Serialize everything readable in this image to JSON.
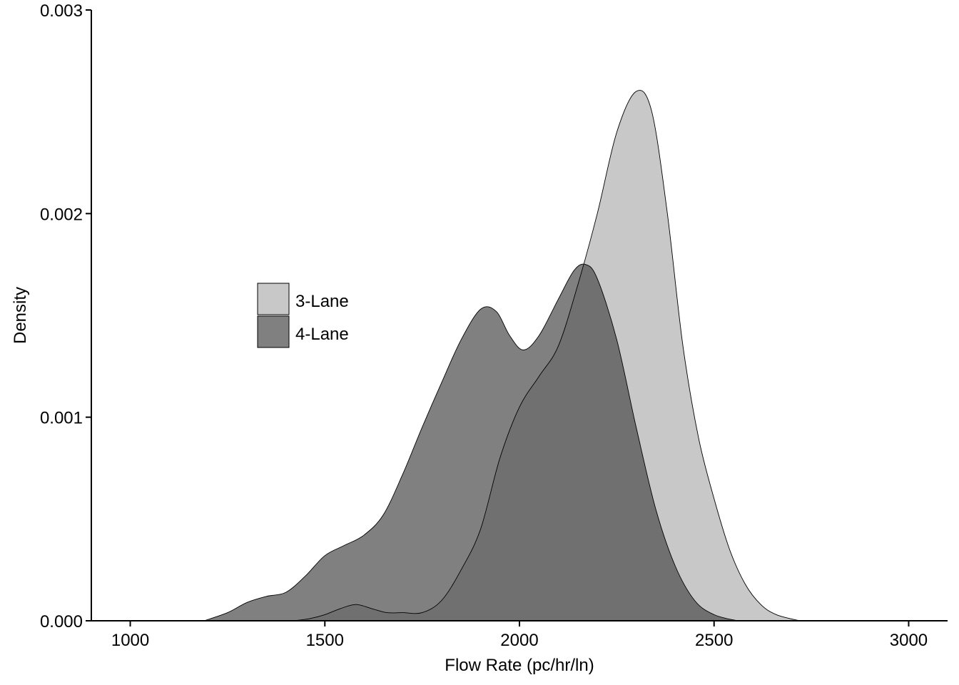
{
  "chart_data": {
    "type": "area",
    "title": "",
    "xlabel": "Flow Rate (pc/hr/ln)",
    "ylabel": "Density",
    "xlim": [
      900,
      3100
    ],
    "ylim": [
      0,
      0.003
    ],
    "x_ticks": [
      1000,
      1500,
      2000,
      2500,
      3000
    ],
    "x_tick_labels": [
      "1000",
      "1500",
      "2000",
      "2500",
      "3000"
    ],
    "y_ticks": [
      0,
      0.001,
      0.002,
      0.003
    ],
    "y_tick_labels": [
      "0.000",
      "0.001",
      "0.002",
      "0.003"
    ],
    "grid": false,
    "legend_position": "left-center",
    "series": [
      {
        "name": "3-Lane",
        "color": "#c8c8c8",
        "points": [
          [
            1420,
            0
          ],
          [
            1460,
            1e-05
          ],
          [
            1500,
            3e-05
          ],
          [
            1540,
            6e-05
          ],
          [
            1580,
            8e-05
          ],
          [
            1620,
            6e-05
          ],
          [
            1660,
            4e-05
          ],
          [
            1700,
            4e-05
          ],
          [
            1750,
            4e-05
          ],
          [
            1800,
            0.0001
          ],
          [
            1850,
            0.00025
          ],
          [
            1900,
            0.00045
          ],
          [
            1950,
            0.0008
          ],
          [
            2000,
            0.00105
          ],
          [
            2050,
            0.0012
          ],
          [
            2100,
            0.00135
          ],
          [
            2150,
            0.00165
          ],
          [
            2200,
            0.002
          ],
          [
            2250,
            0.0024
          ],
          [
            2300,
            0.0026
          ],
          [
            2340,
            0.0025
          ],
          [
            2380,
            0.002
          ],
          [
            2420,
            0.00135
          ],
          [
            2460,
            0.0009
          ],
          [
            2500,
            0.0006
          ],
          [
            2540,
            0.00035
          ],
          [
            2580,
            0.00018
          ],
          [
            2620,
            8e-05
          ],
          [
            2660,
            3e-05
          ],
          [
            2720,
            0
          ]
        ]
      },
      {
        "name": "4-Lane",
        "color": "#808080",
        "points": [
          [
            1190,
            0
          ],
          [
            1250,
            4e-05
          ],
          [
            1300,
            9e-05
          ],
          [
            1350,
            0.00012
          ],
          [
            1400,
            0.00014
          ],
          [
            1450,
            0.00022
          ],
          [
            1500,
            0.00032
          ],
          [
            1550,
            0.00037
          ],
          [
            1600,
            0.00042
          ],
          [
            1650,
            0.00052
          ],
          [
            1700,
            0.00072
          ],
          [
            1750,
            0.00095
          ],
          [
            1800,
            0.00117
          ],
          [
            1850,
            0.00138
          ],
          [
            1900,
            0.00153
          ],
          [
            1940,
            0.00152
          ],
          [
            1975,
            0.0014
          ],
          [
            2010,
            0.00133
          ],
          [
            2050,
            0.0014
          ],
          [
            2100,
            0.00158
          ],
          [
            2140,
            0.00172
          ],
          [
            2170,
            0.00175
          ],
          [
            2200,
            0.00168
          ],
          [
            2250,
            0.00138
          ],
          [
            2300,
            0.00095
          ],
          [
            2350,
            0.00055
          ],
          [
            2400,
            0.00027
          ],
          [
            2450,
            0.0001
          ],
          [
            2500,
            3e-05
          ],
          [
            2560,
            0
          ]
        ]
      }
    ]
  }
}
